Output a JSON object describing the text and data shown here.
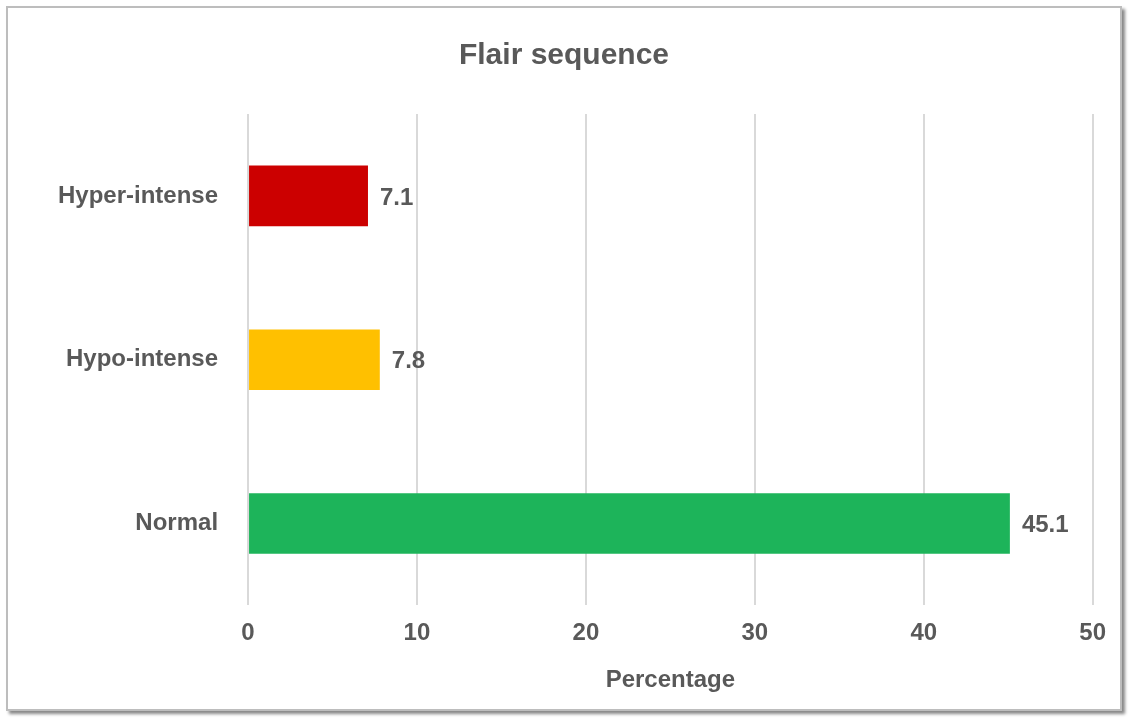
{
  "chart_data": {
    "type": "bar",
    "orientation": "horizontal",
    "title": "Flair sequence",
    "xlabel": "Percentage",
    "categories": [
      "Hyper-intense",
      "Hypo-intense",
      "Normal"
    ],
    "values": [
      7.1,
      7.8,
      45.1
    ],
    "colors": [
      "#cc0000",
      "#ffc000",
      "#1db45a"
    ],
    "xlim": [
      0,
      50
    ],
    "xticks": [
      0,
      10,
      20,
      30,
      40,
      50
    ],
    "grid": "x",
    "data_labels": true
  }
}
